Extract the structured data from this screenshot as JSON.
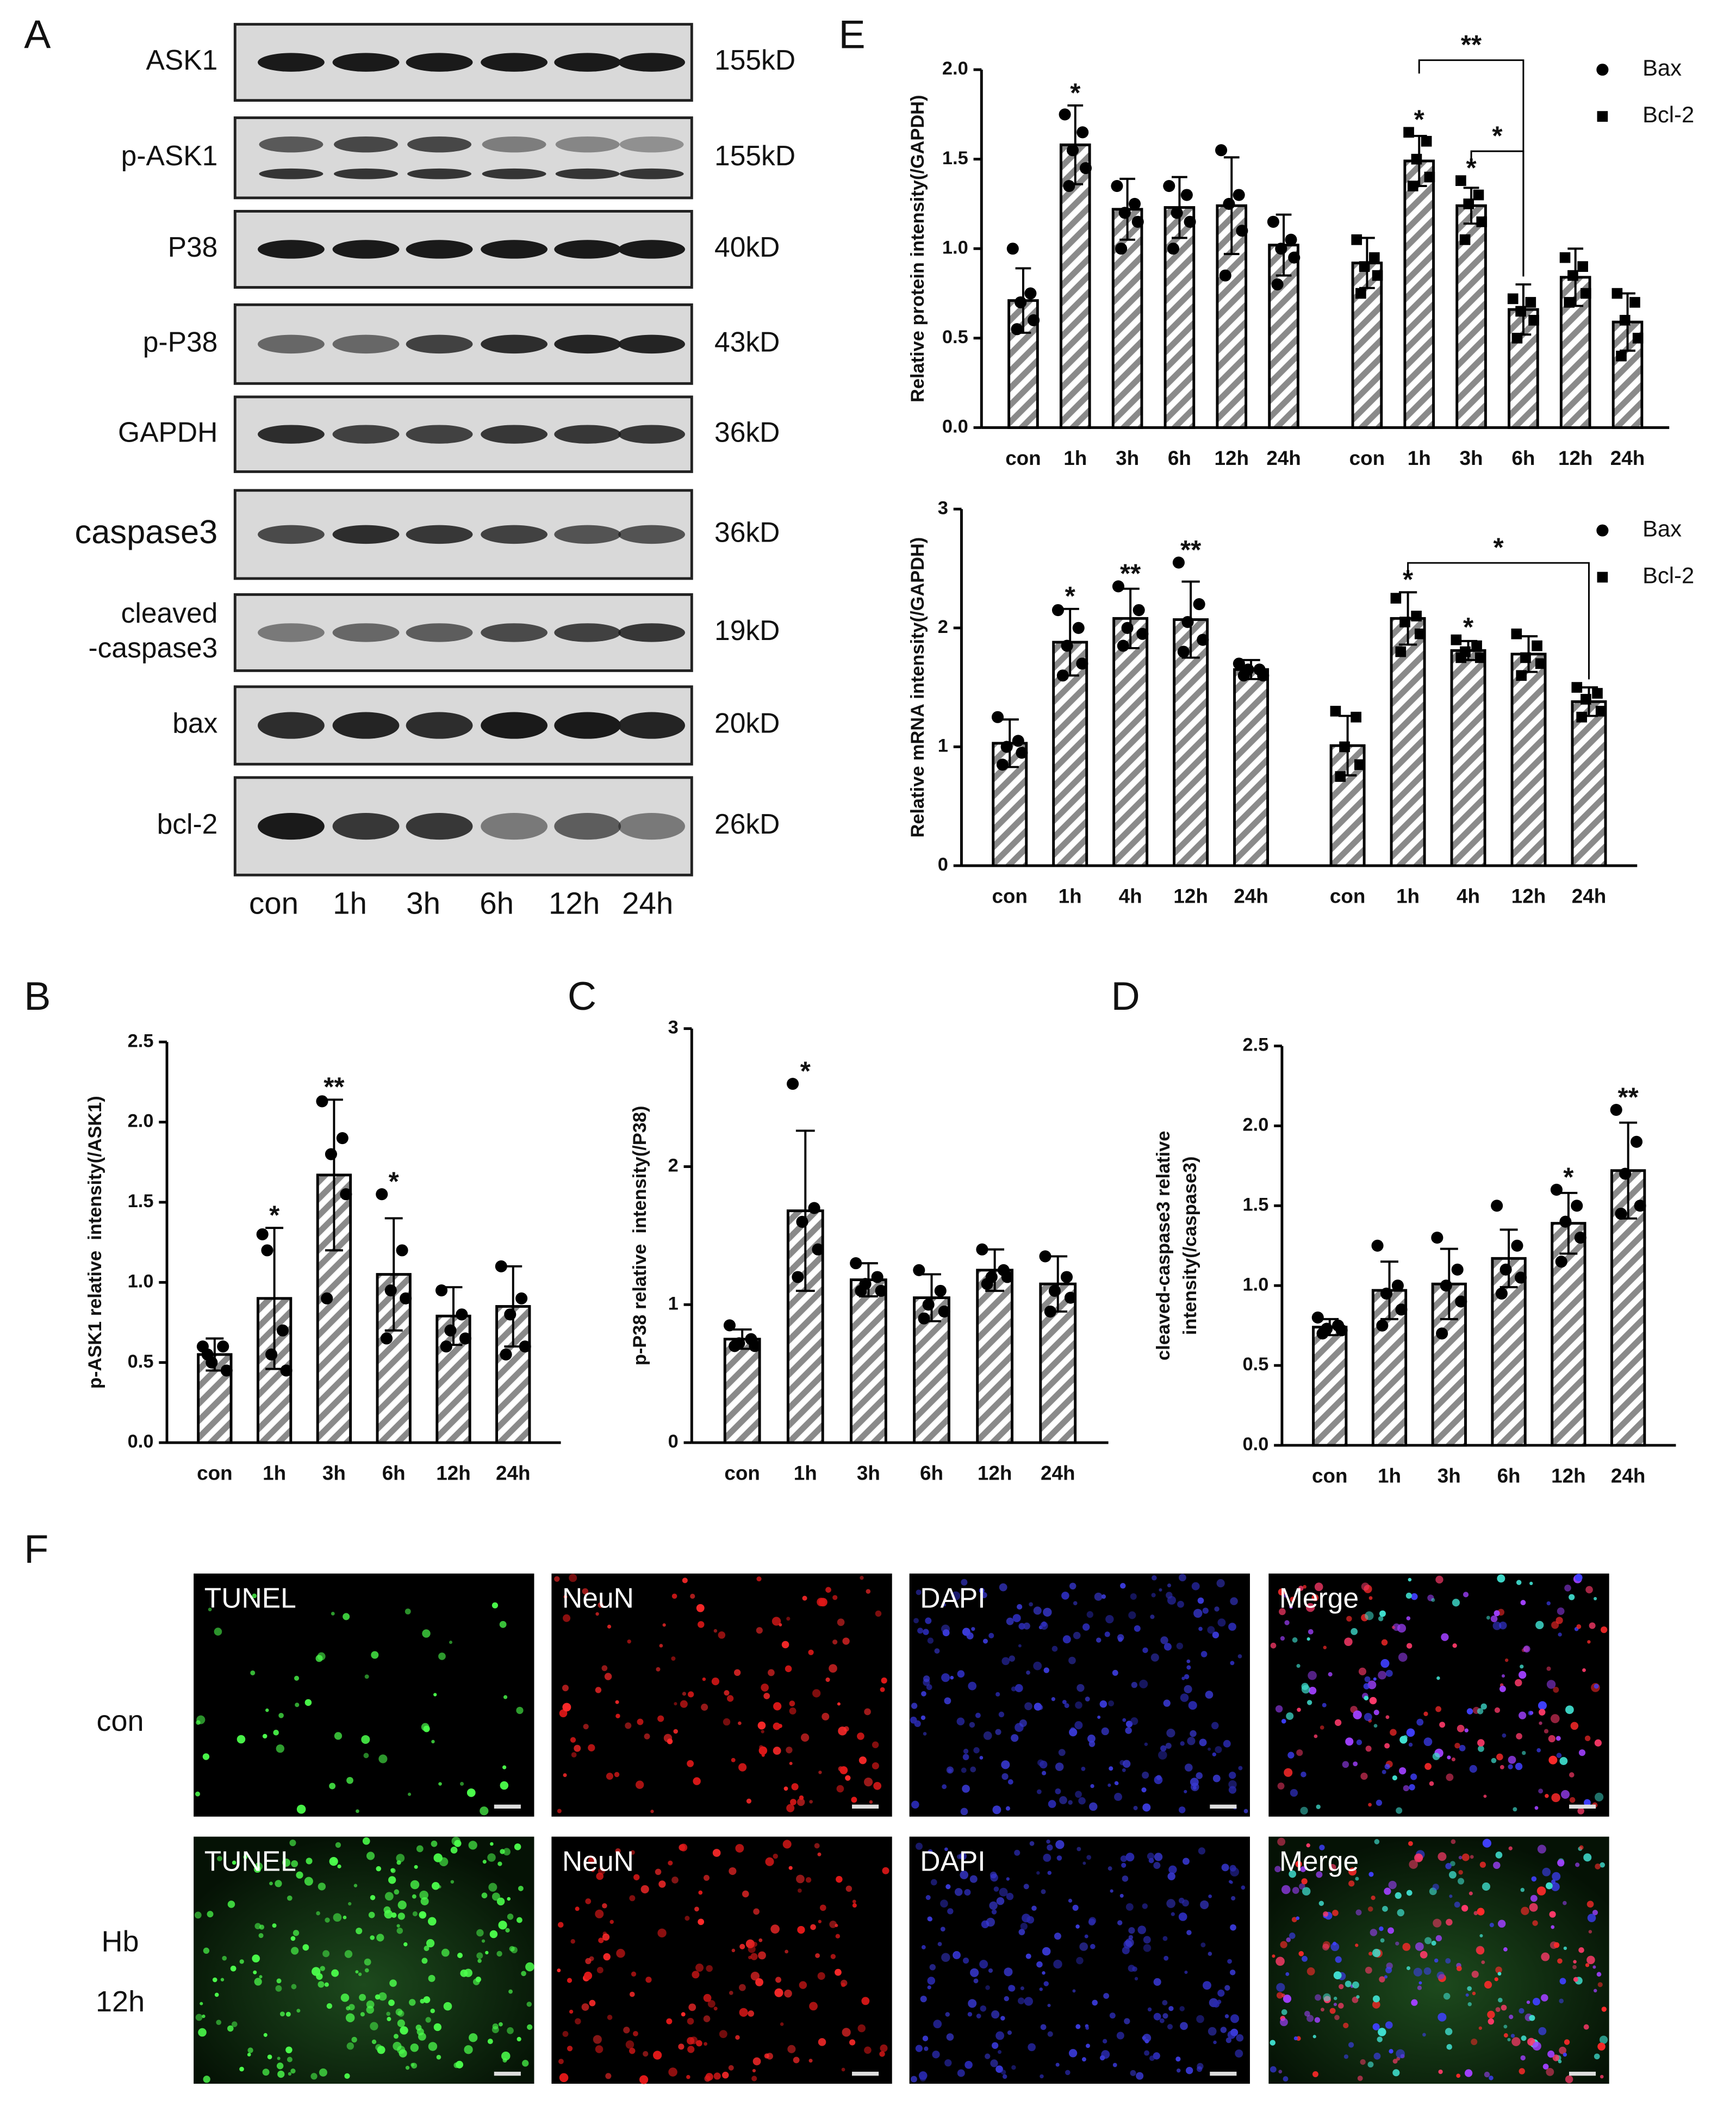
{
  "panel_labels": [
    "A",
    "B",
    "C",
    "D",
    "E",
    "F"
  ],
  "western_blot": {
    "rows": [
      {
        "name": "ASK1",
        "size": "155kD"
      },
      {
        "name": "p-ASK1",
        "size": "155kD"
      },
      {
        "name": "P38",
        "size": "40kD"
      },
      {
        "name": "p-P38",
        "size": "43kD"
      },
      {
        "name": "GAPDH",
        "size": "36kD"
      },
      {
        "name": "caspase3",
        "size": "36kD"
      },
      {
        "name": [
          "cleaved",
          "-caspase3"
        ],
        "size": "19kD"
      },
      {
        "name": "bax",
        "size": "20kD"
      },
      {
        "name": "bcl-2",
        "size": "26kD"
      }
    ],
    "lanes": [
      "con",
      "1h",
      "3h",
      "6h",
      "12h",
      "24h"
    ]
  },
  "chart_data": [
    {
      "type": "bar",
      "ylabel": "p-ASK1 relative  intensity(/ASK1)",
      "categories": [
        "con",
        "1h",
        "3h",
        "6h",
        "12h",
        "24h"
      ],
      "values": [
        0.55,
        0.9,
        1.67,
        1.05,
        0.79,
        0.85
      ],
      "errors": [
        0.1,
        0.44,
        0.47,
        0.35,
        0.18,
        0.25
      ],
      "points": [
        [
          0.6,
          0.6,
          0.5,
          0.45,
          0.55
        ],
        [
          1.3,
          0.7,
          0.55,
          0.45,
          1.2
        ],
        [
          2.13,
          1.9,
          1.8,
          1.55,
          0.9
        ],
        [
          1.55,
          1.2,
          0.95,
          0.9,
          0.65
        ],
        [
          0.95,
          0.8,
          0.7,
          0.65,
          0.6
        ],
        [
          1.1,
          0.9,
          0.8,
          0.6,
          0.55
        ]
      ],
      "significance": [
        null,
        "*",
        "**",
        "*",
        null,
        null
      ],
      "ylim": [
        0,
        2.5
      ],
      "yticks": [
        {
          "value": 0,
          "label": "0.0"
        },
        0.5,
        {
          "value": 1,
          "label": "1.0"
        },
        1.5,
        {
          "value": 2,
          "label": "2.0"
        },
        2.5
      ]
    },
    {
      "type": "bar",
      "ylabel": "p-P38 relative  intensity(/P38)",
      "categories": [
        "con",
        "1h",
        "3h",
        "6h",
        "12h",
        "24h"
      ],
      "values": [
        0.75,
        1.68,
        1.18,
        1.05,
        1.25,
        1.15
      ],
      "errors": [
        0.07,
        0.58,
        0.12,
        0.17,
        0.15,
        0.2
      ],
      "points": [
        [
          0.85,
          0.75,
          0.72,
          0.7,
          0.7
        ],
        [
          2.6,
          1.7,
          1.6,
          1.4,
          1.2
        ],
        [
          1.3,
          1.2,
          1.15,
          1.1,
          1.1
        ],
        [
          1.25,
          1.1,
          1.0,
          0.95,
          0.9
        ],
        [
          1.4,
          1.25,
          1.2,
          1.2,
          1.15
        ],
        [
          1.35,
          1.2,
          1.1,
          1.05,
          0.95
        ]
      ],
      "significance": [
        null,
        "*",
        null,
        null,
        null,
        null
      ],
      "ylim": [
        0,
        3
      ],
      "yticks": [
        0,
        1,
        2,
        3
      ]
    },
    {
      "type": "bar",
      "ylabel": [
        "cleaved-caspase3 relative",
        "intensity(/caspase3)"
      ],
      "categories": [
        "con",
        "1h",
        "3h",
        "6h",
        "12h",
        "24h"
      ],
      "values": [
        0.74,
        0.97,
        1.01,
        1.17,
        1.39,
        1.72
      ],
      "errors": [
        0.05,
        0.18,
        0.22,
        0.18,
        0.19,
        0.3
      ],
      "points": [
        [
          0.8,
          0.75,
          0.73,
          0.72,
          0.7
        ],
        [
          1.25,
          1.0,
          0.95,
          0.85,
          0.75
        ],
        [
          1.3,
          1.1,
          1.0,
          0.9,
          0.7
        ],
        [
          1.5,
          1.25,
          1.1,
          1.05,
          0.95
        ],
        [
          1.6,
          1.5,
          1.4,
          1.3,
          1.15
        ],
        [
          2.1,
          1.9,
          1.7,
          1.5,
          1.45
        ]
      ],
      "significance": [
        null,
        null,
        null,
        null,
        "*",
        "**"
      ],
      "ylim": [
        0,
        2.5
      ],
      "yticks": [
        {
          "value": 0,
          "label": "0.0"
        },
        0.5,
        {
          "value": 1,
          "label": "1.0"
        },
        1.5,
        {
          "value": 2,
          "label": "2.0"
        },
        2.5
      ]
    },
    {
      "type": "bar",
      "ylabel": "Relative protein intensity(/GAPDH)",
      "categories": [
        "con",
        "1h",
        "3h",
        "6h",
        "12h",
        "24h"
      ],
      "series": [
        {
          "name": "Bax",
          "marker": "circle",
          "values": [
            0.71,
            1.58,
            1.22,
            1.23,
            1.24,
            1.02
          ],
          "errors": [
            0.18,
            0.22,
            0.17,
            0.17,
            0.27,
            0.17
          ],
          "points": [
            [
              1.0,
              0.75,
              0.7,
              0.6,
              0.55
            ],
            [
              1.75,
              1.65,
              1.55,
              1.45,
              1.35
            ],
            [
              1.35,
              1.25,
              1.2,
              1.15,
              1.0
            ],
            [
              1.35,
              1.3,
              1.2,
              1.15,
              1.0
            ],
            [
              1.55,
              1.3,
              1.25,
              1.1,
              0.85
            ],
            [
              1.15,
              1.05,
              1.0,
              0.95,
              0.8
            ]
          ],
          "significance": [
            null,
            "*",
            null,
            null,
            null,
            null
          ]
        },
        {
          "name": "Bcl-2",
          "marker": "square",
          "values": [
            0.92,
            1.49,
            1.24,
            0.66,
            0.84,
            0.59
          ],
          "errors": [
            0.14,
            0.14,
            0.1,
            0.14,
            0.16,
            0.16
          ],
          "points": [
            [
              1.05,
              0.95,
              0.9,
              0.85,
              0.75
            ],
            [
              1.65,
              1.6,
              1.5,
              1.4,
              1.35
            ],
            [
              1.38,
              1.3,
              1.25,
              1.15,
              1.05
            ],
            [
              0.72,
              0.7,
              0.65,
              0.6,
              0.5
            ],
            [
              0.95,
              0.9,
              0.85,
              0.75,
              0.7
            ],
            [
              0.75,
              0.7,
              0.6,
              0.5,
              0.4
            ]
          ],
          "significance": [
            null,
            "*",
            "*",
            null,
            null,
            null
          ],
          "brackets": [
            {
              "from": "1h",
              "to": "6h",
              "label": "**"
            },
            {
              "from": "3h",
              "to": "6h",
              "label": "*"
            }
          ]
        }
      ],
      "ylim": [
        0,
        2
      ],
      "yticks": [
        {
          "value": 0,
          "label": "0.0"
        },
        0.5,
        {
          "value": 1,
          "label": "1.0"
        },
        1.5,
        {
          "value": 2,
          "label": "2.0"
        }
      ],
      "legend": "right"
    },
    {
      "type": "bar",
      "ylabel": "Relative mRNA intensity(/GAPDH)",
      "categories": [
        "con",
        "1h",
        "4h",
        "12h",
        "24h"
      ],
      "series": [
        {
          "name": "Bax",
          "marker": "circle",
          "values": [
            1.03,
            1.88,
            2.08,
            2.07,
            1.65
          ],
          "errors": [
            0.2,
            0.28,
            0.25,
            0.32,
            0.08
          ],
          "points": [
            [
              1.25,
              1.05,
              1.0,
              0.95,
              0.85
            ],
            [
              2.15,
              2.0,
              1.85,
              1.7,
              1.6
            ],
            [
              2.35,
              2.15,
              2.0,
              1.95,
              1.85
            ],
            [
              2.55,
              2.2,
              2.05,
              1.9,
              1.8
            ],
            [
              1.7,
              1.65,
              1.65,
              1.6,
              1.6
            ]
          ],
          "significance": [
            null,
            "*",
            "**",
            "**",
            null
          ]
        },
        {
          "name": "Bcl-2",
          "marker": "square",
          "values": [
            1.01,
            2.08,
            1.81,
            1.78,
            1.38
          ],
          "errors": [
            0.25,
            0.22,
            0.08,
            0.15,
            0.12
          ],
          "points": [
            [
              1.3,
              1.25,
              1.0,
              0.85,
              0.75
            ],
            [
              2.25,
              2.1,
              2.05,
              1.95,
              1.8
            ],
            [
              1.9,
              1.85,
              1.8,
              1.75,
              1.75
            ],
            [
              1.95,
              1.85,
              1.75,
              1.7,
              1.6
            ],
            [
              1.5,
              1.45,
              1.4,
              1.3,
              1.25
            ]
          ],
          "significance": [
            null,
            "*",
            "*",
            null,
            null
          ],
          "brackets": [
            {
              "from": "1h",
              "to": "24h",
              "label": "*"
            }
          ]
        }
      ],
      "ylim": [
        0,
        3
      ],
      "yticks": [
        0,
        1,
        2,
        3
      ],
      "legend": "right"
    }
  ],
  "microscopy": {
    "columns": [
      "TUNEL",
      "NeuN",
      "DAPI",
      "Merge"
    ],
    "rows": [
      {
        "label": [
          "con"
        ]
      },
      {
        "label": [
          "Hb",
          "12h"
        ]
      }
    ]
  }
}
